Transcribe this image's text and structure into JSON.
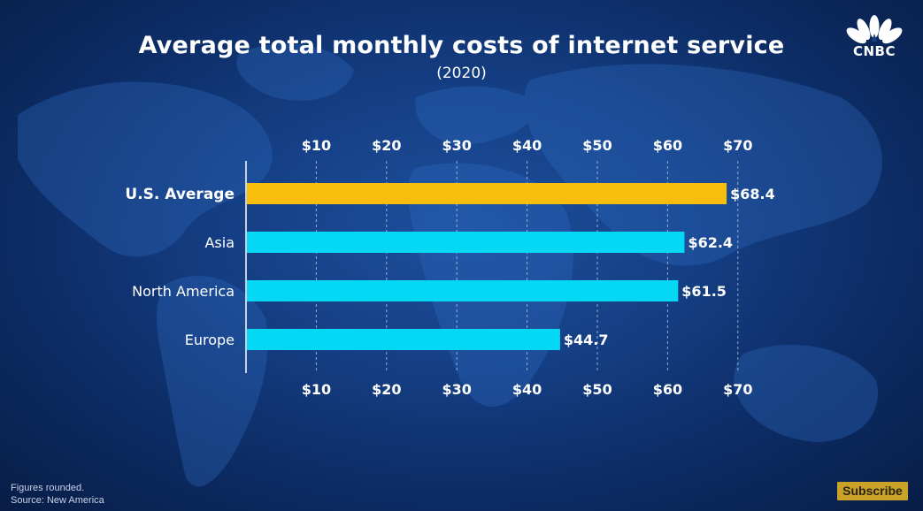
{
  "header": {
    "title": "Average total monthly costs of internet service",
    "subtitle": "(2020)",
    "logo_text": "CNBC"
  },
  "chart_data": {
    "type": "bar",
    "orientation": "horizontal",
    "categories": [
      "U.S. Average",
      "Asia",
      "North America",
      "Europe"
    ],
    "values": [
      68.4,
      62.4,
      61.5,
      44.7
    ],
    "value_labels": [
      "$68.4",
      "$62.4",
      "$61.5",
      "$44.7"
    ],
    "highlight": [
      "U.S. Average"
    ],
    "x_ticks": [
      10,
      20,
      30,
      40,
      50,
      60,
      70
    ],
    "x_tick_labels": [
      "$10",
      "$20",
      "$30",
      "$40",
      "$50",
      "$60",
      "$70"
    ],
    "xlim": [
      0,
      70
    ],
    "grid": true,
    "tick_labels_position": "top-and-bottom",
    "colors": {
      "highlight": "#f9bd0b",
      "default": "#04d8f4",
      "grid": "#c4cfe3",
      "text": "#ffffff"
    }
  },
  "footer": {
    "note_line1": "Figures rounded.",
    "note_line2": "Source: New America",
    "subscribe_label": "Subscribe"
  },
  "colors": {
    "subscribe_bg": "#c9a227"
  }
}
